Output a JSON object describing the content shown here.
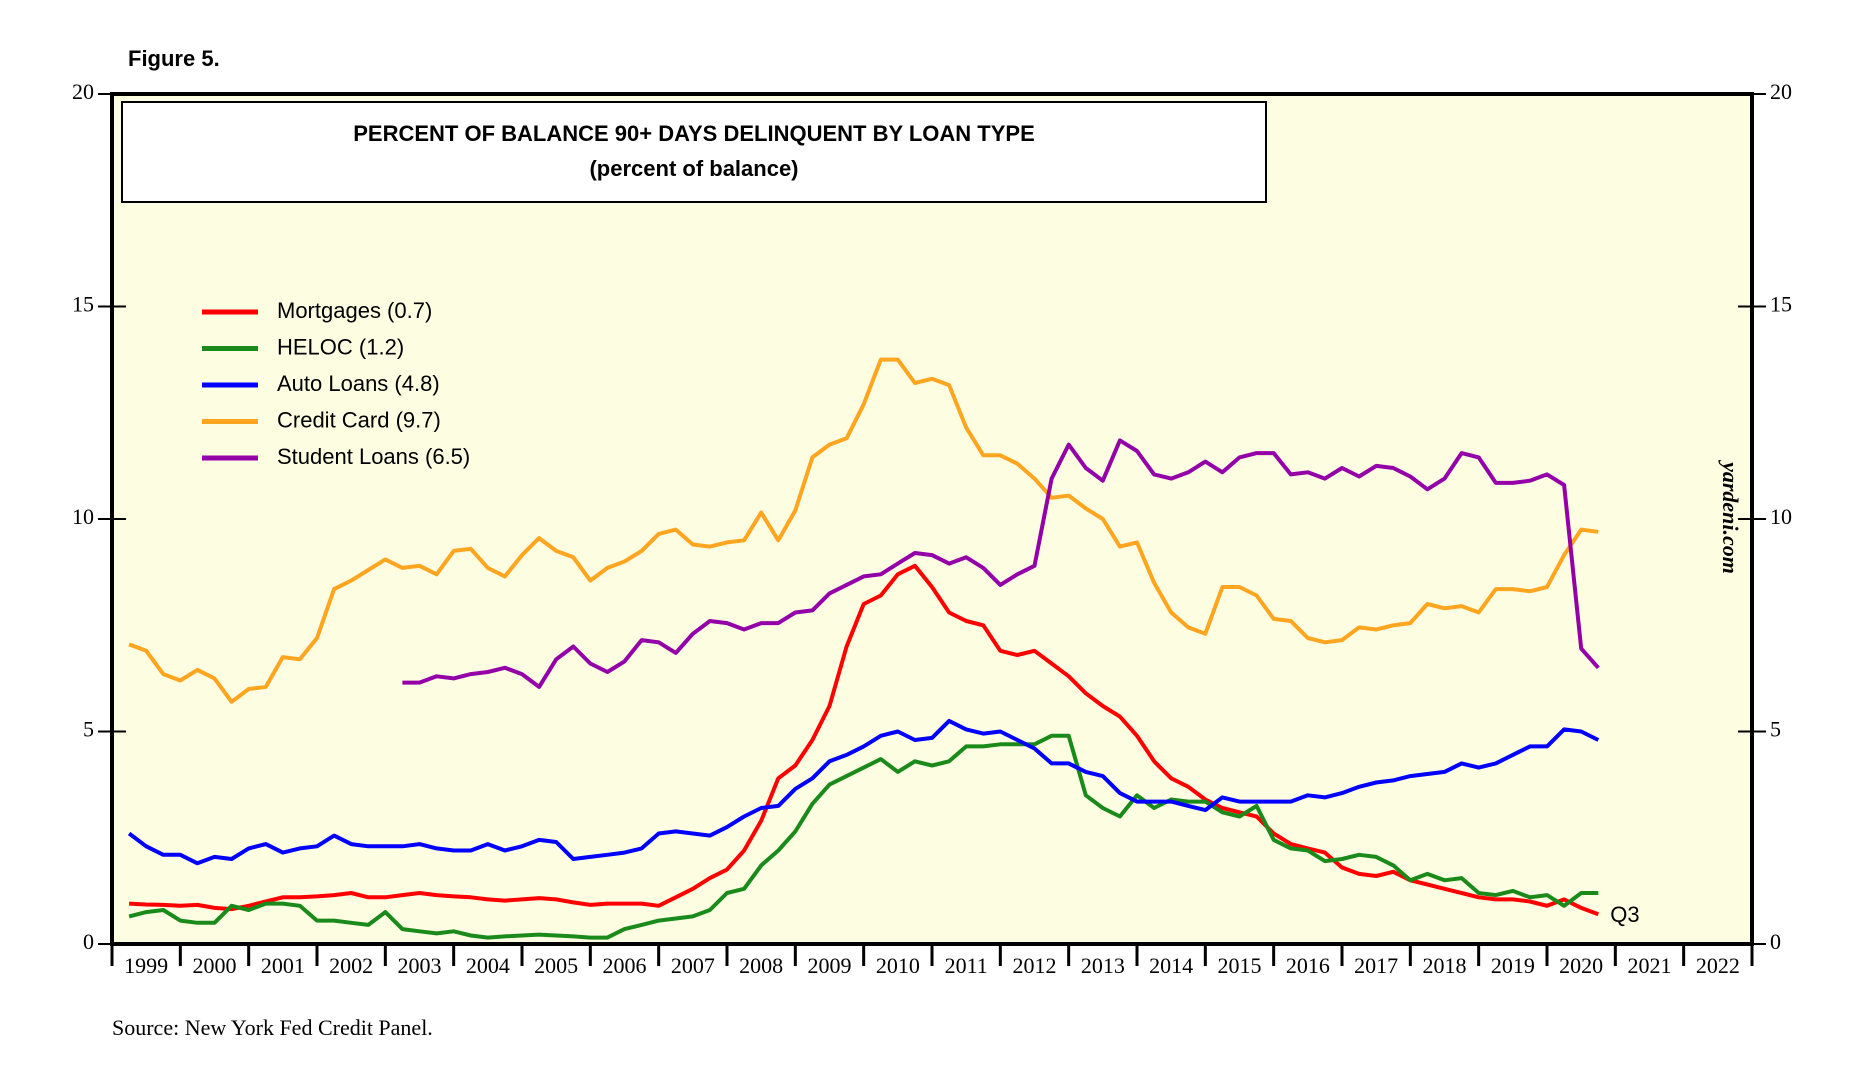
{
  "figure_label": "Figure 5.",
  "source": "Source: New York Fed Credit Panel.",
  "chart_data": {
    "type": "line",
    "title": "PERCENT OF BALANCE 90+ DAYS DELINQUENT BY LOAN TYPE",
    "subtitle": "(percent of balance)",
    "watermark": "yardeni.com",
    "annotation": {
      "text": "Q3",
      "color": "#ff0000"
    },
    "x": [
      1999.25,
      1999.5,
      1999.75,
      2000,
      2000.25,
      2000.5,
      2000.75,
      2001,
      2001.25,
      2001.5,
      2001.75,
      2002,
      2002.25,
      2002.5,
      2002.75,
      2003,
      2003.25,
      2003.5,
      2003.75,
      2004,
      2004.25,
      2004.5,
      2004.75,
      2005,
      2005.25,
      2005.5,
      2005.75,
      2006,
      2006.25,
      2006.5,
      2006.75,
      2007,
      2007.25,
      2007.5,
      2007.75,
      2008,
      2008.25,
      2008.5,
      2008.75,
      2009,
      2009.25,
      2009.5,
      2009.75,
      2010,
      2010.25,
      2010.5,
      2010.75,
      2011,
      2011.25,
      2011.5,
      2011.75,
      2012,
      2012.25,
      2012.5,
      2012.75,
      2013,
      2013.25,
      2013.5,
      2013.75,
      2014,
      2014.25,
      2014.5,
      2014.75,
      2015,
      2015.25,
      2015.5,
      2015.75,
      2016,
      2016.25,
      2016.5,
      2016.75,
      2017,
      2017.25,
      2017.5,
      2017.75,
      2018,
      2018.25,
      2018.5,
      2018.75,
      2019,
      2019.25,
      2019.5,
      2019.75,
      2020,
      2020.25,
      2020.5,
      2020.75
    ],
    "series": [
      {
        "name": "Mortgages (0.7)",
        "color": "#ff0000",
        "values": [
          0.95,
          0.93,
          0.92,
          0.9,
          0.92,
          0.85,
          0.82,
          0.9,
          1.0,
          1.1,
          1.1,
          1.12,
          1.15,
          1.2,
          1.1,
          1.1,
          1.15,
          1.2,
          1.15,
          1.12,
          1.1,
          1.05,
          1.02,
          1.05,
          1.08,
          1.05,
          0.98,
          0.92,
          0.95,
          0.95,
          0.95,
          0.9,
          1.1,
          1.3,
          1.55,
          1.75,
          2.2,
          2.9,
          3.9,
          4.2,
          4.8,
          5.6,
          7.0,
          8.0,
          8.2,
          8.7,
          8.9,
          8.4,
          7.8,
          7.6,
          7.5,
          6.9,
          6.8,
          6.9,
          6.6,
          6.3,
          5.9,
          5.6,
          5.35,
          4.9,
          4.3,
          3.9,
          3.7,
          3.4,
          3.2,
          3.1,
          3.0,
          2.6,
          2.35,
          2.25,
          2.15,
          1.8,
          1.65,
          1.6,
          1.7,
          1.5,
          1.4,
          1.3,
          1.2,
          1.1,
          1.05,
          1.05,
          1.0,
          0.9,
          1.05,
          0.85,
          0.7
        ]
      },
      {
        "name": "HELOC (1.2)",
        "color": "#1a8a1a",
        "values": [
          0.65,
          0.75,
          0.8,
          0.55,
          0.5,
          0.5,
          0.9,
          0.8,
          0.95,
          0.95,
          0.9,
          0.55,
          0.55,
          0.5,
          0.45,
          0.75,
          0.35,
          0.3,
          0.25,
          0.3,
          0.2,
          0.15,
          0.18,
          0.2,
          0.22,
          0.2,
          0.18,
          0.15,
          0.15,
          0.35,
          0.45,
          0.55,
          0.6,
          0.65,
          0.8,
          1.2,
          1.3,
          1.85,
          2.2,
          2.65,
          3.3,
          3.75,
          3.95,
          4.15,
          4.35,
          4.05,
          4.3,
          4.2,
          4.3,
          4.65,
          4.65,
          4.7,
          4.7,
          4.7,
          4.9,
          4.9,
          3.5,
          3.2,
          3.0,
          3.5,
          3.2,
          3.4,
          3.35,
          3.35,
          3.1,
          3.0,
          3.25,
          2.45,
          2.25,
          2.2,
          1.95,
          2.0,
          2.1,
          2.05,
          1.85,
          1.5,
          1.65,
          1.5,
          1.55,
          1.2,
          1.15,
          1.25,
          1.1,
          1.15,
          0.9,
          1.2,
          1.2
        ]
      },
      {
        "name": "Auto Loans (4.8)",
        "color": "#0000ff",
        "values": [
          2.6,
          2.3,
          2.1,
          2.1,
          1.9,
          2.05,
          2.0,
          2.25,
          2.35,
          2.15,
          2.25,
          2.3,
          2.55,
          2.35,
          2.3,
          2.3,
          2.3,
          2.35,
          2.25,
          2.2,
          2.2,
          2.35,
          2.2,
          2.3,
          2.45,
          2.4,
          2.0,
          2.05,
          2.1,
          2.15,
          2.25,
          2.6,
          2.65,
          2.6,
          2.55,
          2.75,
          3.0,
          3.2,
          3.25,
          3.65,
          3.9,
          4.3,
          4.45,
          4.65,
          4.9,
          5.0,
          4.8,
          4.85,
          5.25,
          5.05,
          4.95,
          5.0,
          4.8,
          4.6,
          4.25,
          4.25,
          4.05,
          3.95,
          3.55,
          3.35,
          3.35,
          3.35,
          3.25,
          3.15,
          3.45,
          3.35,
          3.35,
          3.35,
          3.35,
          3.5,
          3.45,
          3.55,
          3.7,
          3.8,
          3.85,
          3.95,
          4.0,
          4.05,
          4.25,
          4.15,
          4.25,
          4.45,
          4.65,
          4.65,
          5.05,
          5.0,
          4.8
        ]
      },
      {
        "name": "Credit Card (9.7)",
        "color": "#ffa520",
        "values": [
          7.05,
          6.9,
          6.35,
          6.2,
          6.45,
          6.25,
          5.7,
          6.0,
          6.05,
          6.75,
          6.7,
          7.2,
          8.35,
          8.55,
          8.8,
          9.05,
          8.85,
          8.9,
          8.7,
          9.25,
          9.3,
          8.85,
          8.65,
          9.15,
          9.55,
          9.25,
          9.1,
          8.55,
          8.85,
          9.0,
          9.25,
          9.65,
          9.75,
          9.4,
          9.35,
          9.45,
          9.5,
          10.15,
          9.5,
          10.2,
          11.45,
          11.75,
          11.9,
          12.7,
          13.75,
          13.75,
          13.2,
          13.3,
          13.15,
          12.15,
          11.5,
          11.5,
          11.3,
          10.95,
          10.5,
          10.55,
          10.25,
          10.0,
          9.35,
          9.45,
          8.5,
          7.8,
          7.45,
          7.3,
          8.4,
          8.4,
          8.2,
          7.65,
          7.6,
          7.2,
          7.1,
          7.15,
          7.45,
          7.4,
          7.5,
          7.55,
          8.0,
          7.9,
          7.95,
          7.8,
          8.35,
          8.35,
          8.3,
          8.4,
          9.15,
          9.75,
          9.7
        ]
      },
      {
        "name": "Student Loans (6.5)",
        "color": "#9400a8",
        "values": [
          null,
          null,
          null,
          null,
          null,
          null,
          null,
          null,
          null,
          null,
          null,
          null,
          null,
          null,
          null,
          null,
          6.15,
          6.15,
          6.3,
          6.25,
          6.35,
          6.4,
          6.5,
          6.35,
          6.05,
          6.7,
          7.0,
          6.6,
          6.4,
          6.65,
          7.15,
          7.1,
          6.85,
          7.3,
          7.6,
          7.55,
          7.4,
          7.55,
          7.55,
          7.8,
          7.85,
          8.25,
          8.45,
          8.65,
          8.7,
          8.95,
          9.2,
          9.15,
          8.95,
          9.1,
          8.85,
          8.45,
          8.7,
          8.9,
          10.95,
          11.75,
          11.2,
          10.9,
          11.85,
          11.6,
          11.05,
          10.95,
          11.1,
          11.35,
          11.1,
          11.45,
          11.55,
          11.55,
          11.05,
          11.1,
          10.95,
          11.2,
          11.0,
          11.25,
          11.2,
          11.0,
          10.7,
          10.95,
          11.55,
          11.45,
          10.85,
          10.85,
          10.9,
          11.05,
          10.8,
          6.95,
          6.5
        ]
      }
    ],
    "xlim": [
      1999,
      2023
    ],
    "xticks": [
      1999,
      2000,
      2001,
      2002,
      2003,
      2004,
      2005,
      2006,
      2007,
      2008,
      2009,
      2010,
      2011,
      2012,
      2013,
      2014,
      2015,
      2016,
      2017,
      2018,
      2019,
      2020,
      2021,
      2022
    ],
    "ylim": [
      0,
      20
    ],
    "yticks": [
      0,
      5,
      10,
      15,
      20
    ],
    "background": "#fdfde2"
  }
}
